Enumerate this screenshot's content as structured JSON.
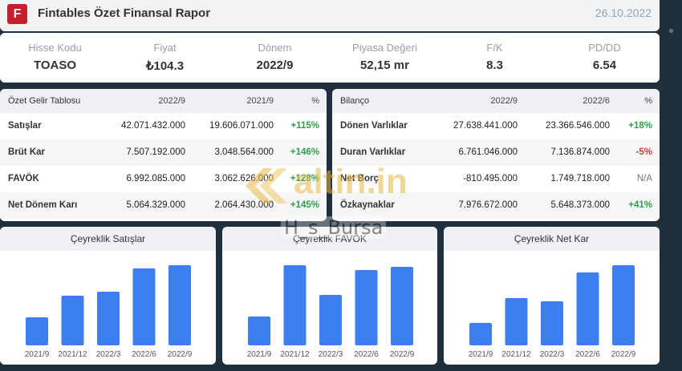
{
  "header": {
    "logo_letter": "F",
    "title": "Fintables Özet Finansal Rapor",
    "date": "26.10.2022"
  },
  "summary": [
    {
      "label": "Hisse Kodu",
      "value": "TOASO"
    },
    {
      "label": "Fiyat",
      "value": "₺104.3"
    },
    {
      "label": "Dönem",
      "value": "2022/9"
    },
    {
      "label": "Piyasa Değeri",
      "value": "52,15 mr"
    },
    {
      "label": "F/K",
      "value": "8.3"
    },
    {
      "label": "PD/DD",
      "value": "6.54"
    }
  ],
  "income": {
    "headers": [
      "Özet Gelir Tablosu",
      "2022/9",
      "2021/9",
      "%"
    ],
    "rows": [
      {
        "name": "Satışlar",
        "a": "42.071.432.000",
        "b": "19.606.071.000",
        "pct": "+115%",
        "tone": "pos"
      },
      {
        "name": "Brüt Kar",
        "a": "7.507.192.000",
        "b": "3.048.564.000",
        "pct": "+146%",
        "tone": "pos"
      },
      {
        "name": "FAVÖK",
        "a": "6.992.085.000",
        "b": "3.062.626.000",
        "pct": "+128%",
        "tone": "pos"
      },
      {
        "name": "Net Dönem Karı",
        "a": "5.064.329.000",
        "b": "2.064.430.000",
        "pct": "+145%",
        "tone": "pos"
      }
    ]
  },
  "balance": {
    "headers": [
      "Bilanço",
      "2022/9",
      "2022/6",
      "%"
    ],
    "rows": [
      {
        "name": "Dönen Varlıklar",
        "a": "27.638.441.000",
        "b": "23.366.546.000",
        "pct": "+18%",
        "tone": "pos"
      },
      {
        "name": "Duran Varlıklar",
        "a": "6.761.046.000",
        "b": "7.136.874.000",
        "pct": "-5%",
        "tone": "neg"
      },
      {
        "name": "Net Borç",
        "a": "-810.495.000",
        "b": "1.749.718.000",
        "pct": "N/A",
        "tone": "na"
      },
      {
        "name": "Özkaynaklar",
        "a": "7.976.672.000",
        "b": "5.648.373.000",
        "pct": "+41%",
        "tone": "pos"
      }
    ]
  },
  "watermark": {
    "brand": "altin.in",
    "sub": "H_s_Bursa"
  },
  "colors": {
    "bar": "#3d7ff0",
    "positive": "#2e9e4b",
    "negative": "#d63a3a",
    "logo": "#c81d2c"
  },
  "chart_data": [
    {
      "type": "bar",
      "title": "Çeyreklik Satışlar",
      "categories": [
        "2021/9",
        "2021/12",
        "2022/3",
        "2022/6",
        "2022/9"
      ],
      "values": [
        35,
        62,
        67,
        96,
        100
      ]
    },
    {
      "type": "bar",
      "title": "Çeyreklik FAVÖK",
      "categories": [
        "2021/9",
        "2021/12",
        "2022/3",
        "2022/6",
        "2022/9"
      ],
      "values": [
        36,
        100,
        63,
        94,
        98
      ]
    },
    {
      "type": "bar",
      "title": "Çeyreklik Net Kar",
      "categories": [
        "2021/9",
        "2021/12",
        "2022/3",
        "2022/6",
        "2022/9"
      ],
      "values": [
        28,
        59,
        55,
        91,
        100
      ]
    }
  ]
}
